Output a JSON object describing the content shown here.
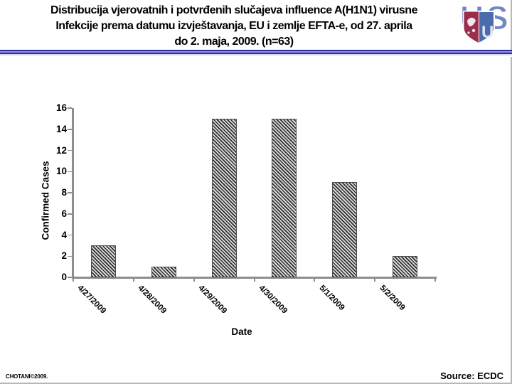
{
  "header": {
    "title_line1": "Distribucija vjerovatnih i potvrđenih slučajeva influence A(H1N1) virusne",
    "title_line2": "Infekcije prema datumu izvještavanja, EU i zemlje EFTA-e, od 27. aprila",
    "title_line3": "do 2. maja, 2009. (n=63)",
    "logo": "USU-shield-logo"
  },
  "chart_data": {
    "type": "bar",
    "categories": [
      "4/27/2009",
      "4/28/2009",
      "4/29/2009",
      "4/30/2009",
      "5/1/2009",
      "5/2/2009"
    ],
    "values": [
      3,
      1,
      15,
      15,
      9,
      2
    ],
    "title": "",
    "xlabel": "Date",
    "ylabel": "Confirmed Cases",
    "ylim": [
      0,
      16
    ],
    "ytick_step": 2,
    "grid": false,
    "legend": "none",
    "bar_style": "diagonal-hatch",
    "n_total": 63
  },
  "footer": {
    "credit": "CHOTANI©2009.",
    "source": "Source: ECDC"
  },
  "colors": {
    "divider_navy": "#2d2d9e",
    "divider_light": "#9494d6",
    "axis_gray": "#8d8d8d",
    "hatch_dark": "#2e2e2e",
    "hatch_light": "#dcdcdc",
    "logo_letter_blue": "#7186c6",
    "logo_shield_blue": "#4a6cab",
    "logo_shield_crimson": "#9c2e4d"
  }
}
